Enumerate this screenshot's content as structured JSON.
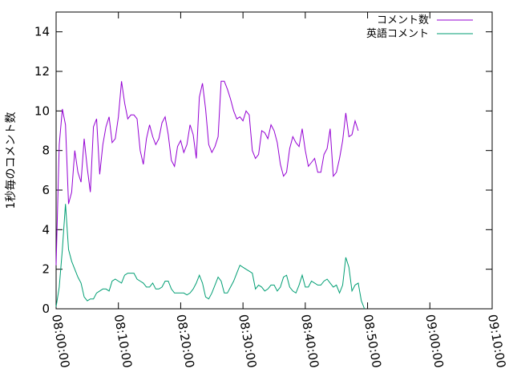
{
  "chart_data": {
    "type": "line",
    "title": "",
    "xlabel": "",
    "ylabel": "1秒毎のコメント数",
    "xlim": [
      "08:00:00",
      "09:10:00"
    ],
    "ylim": [
      0,
      15
    ],
    "x_ticks": [
      "08:00:00",
      "08:10:00",
      "08:20:00",
      "08:30:00",
      "08:40:00",
      "08:50:00",
      "09:00:00",
      "09:10:00"
    ],
    "y_ticks": [
      0,
      2,
      4,
      6,
      8,
      10,
      12,
      14
    ],
    "grid": false,
    "legend_position": "top-right",
    "colors": {
      "comments": "#9400d3",
      "english": "#009e73"
    },
    "x_step_seconds": 30,
    "series": [
      {
        "name": "コメント数",
        "values": [
          2.2,
          8.3,
          10.1,
          9.3,
          5.3,
          5.9,
          8.0,
          6.9,
          6.4,
          8.6,
          7.1,
          5.9,
          9.2,
          9.6,
          6.8,
          8.3,
          9.2,
          9.7,
          8.4,
          8.6,
          9.7,
          11.5,
          10.4,
          9.6,
          9.8,
          9.8,
          9.6,
          8.0,
          7.3,
          8.6,
          9.3,
          8.7,
          8.3,
          8.6,
          9.4,
          9.7,
          8.8,
          7.5,
          7.2,
          8.2,
          8.5,
          7.9,
          8.3,
          9.3,
          8.8,
          7.6,
          10.7,
          11.4,
          10.1,
          8.3,
          7.9,
          8.2,
          8.7,
          11.5,
          11.5,
          11.1,
          10.6,
          10.0,
          9.6,
          9.7,
          9.5,
          10.0,
          9.8,
          8.0,
          7.6,
          7.8,
          9.0,
          8.9,
          8.6,
          9.3,
          9.0,
          8.4,
          7.3,
          6.7,
          6.9,
          8.1,
          8.7,
          8.4,
          8.2,
          9.1,
          8.0,
          7.2,
          7.4,
          7.6,
          6.9,
          6.9,
          7.8,
          8.1,
          9.1,
          6.7,
          6.9,
          7.6,
          8.5,
          9.9,
          8.7,
          8.8,
          9.5,
          9.0
        ],
        "color": "#9400d3"
      },
      {
        "name": "英語コメント",
        "values": [
          0.1,
          1.1,
          3.0,
          5.3,
          3.0,
          2.4,
          2.0,
          1.6,
          1.3,
          0.6,
          0.4,
          0.5,
          0.5,
          0.8,
          0.9,
          1.0,
          1.0,
          0.9,
          1.4,
          1.5,
          1.4,
          1.3,
          1.7,
          1.8,
          1.8,
          1.8,
          1.5,
          1.4,
          1.3,
          1.1,
          1.1,
          1.3,
          1.0,
          1.0,
          1.1,
          1.4,
          1.4,
          1.0,
          0.8,
          0.8,
          0.8,
          0.8,
          0.7,
          0.8,
          1.0,
          1.3,
          1.7,
          1.3,
          0.6,
          0.5,
          0.8,
          1.2,
          1.6,
          1.4,
          0.8,
          0.8,
          1.1,
          1.4,
          1.8,
          2.2,
          2.1,
          2.0,
          1.9,
          1.8,
          1.0,
          1.2,
          1.1,
          0.9,
          1.0,
          1.2,
          1.2,
          0.9,
          1.1,
          1.6,
          1.7,
          1.1,
          0.9,
          0.8,
          1.2,
          1.7,
          1.1,
          1.1,
          1.4,
          1.3,
          1.2,
          1.2,
          1.4,
          1.5,
          1.3,
          1.1,
          1.2,
          0.8,
          1.2,
          2.6,
          2.1,
          0.9,
          1.2,
          1.3,
          0.4,
          0.0
        ],
        "color": "#009e73"
      }
    ]
  }
}
